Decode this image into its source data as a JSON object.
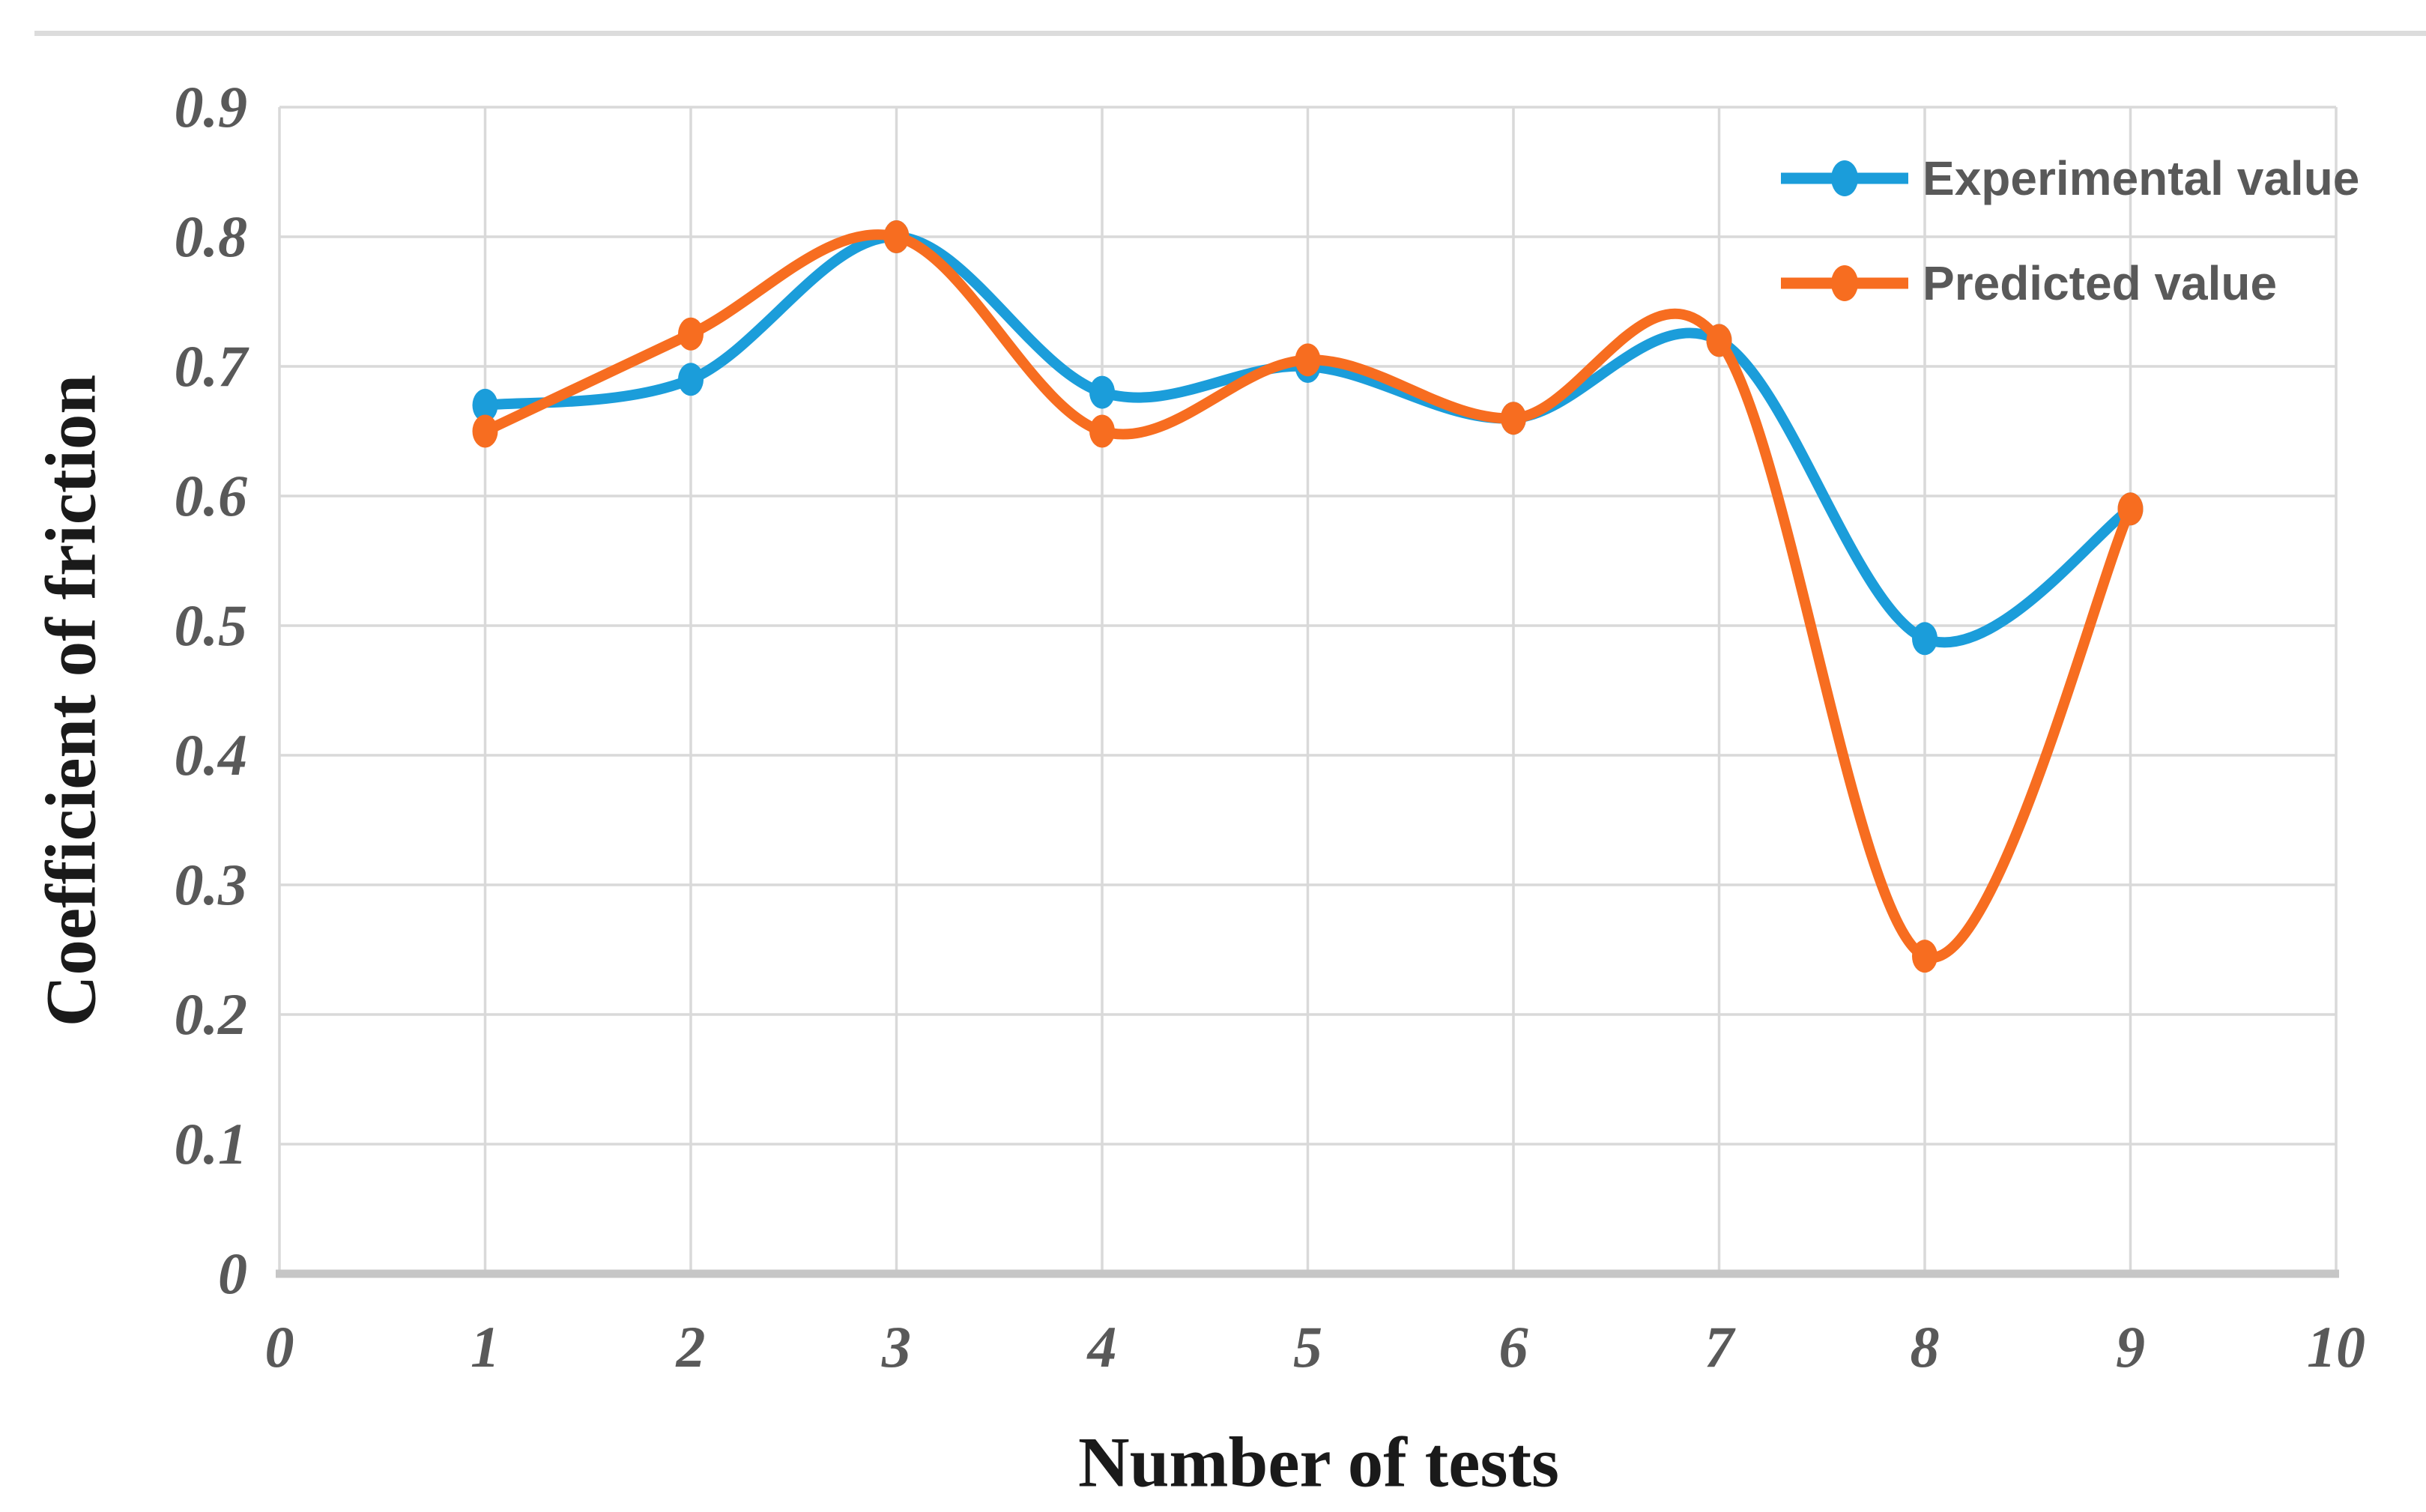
{
  "page": {
    "background_color": "#ffffff",
    "top_strip_color": "#dcdcdc"
  },
  "chart_data": {
    "type": "line",
    "title": "",
    "xlabel": "Number of tests",
    "ylabel": "Coefficient of friction",
    "x": [
      1,
      2,
      3,
      4,
      5,
      6,
      7,
      8,
      9
    ],
    "series": [
      {
        "name": "Experimental value",
        "color": "#1b9dda",
        "values": [
          0.67,
          0.69,
          0.8,
          0.68,
          0.7,
          0.66,
          0.72,
          0.49,
          0.59
        ]
      },
      {
        "name": "Predicted value",
        "color": "#f76d20",
        "values": [
          0.65,
          0.725,
          0.8,
          0.65,
          0.705,
          0.66,
          0.72,
          0.245,
          0.59
        ]
      }
    ],
    "xlim": [
      0,
      10
    ],
    "ylim": [
      0,
      0.9
    ],
    "x_tick_labels": [
      "0",
      "1",
      "2",
      "3",
      "4",
      "5",
      "6",
      "7",
      "8",
      "9",
      "10"
    ],
    "y_tick_labels": [
      "0.9",
      "0.8",
      "0.7",
      "0.6",
      "0.5",
      "0.4",
      "0.3",
      "0.2",
      "0.1",
      "0"
    ],
    "grid": true,
    "smooth": true,
    "marker": "circle",
    "legend_position": "top-right",
    "style": {
      "gridline_color": "#d9d9d9",
      "axis_line_color": "#c6c6c6",
      "tick_label_color": "#595959",
      "axis_title_color": "#1a1a1a",
      "legend_text_color": "#595959"
    }
  }
}
